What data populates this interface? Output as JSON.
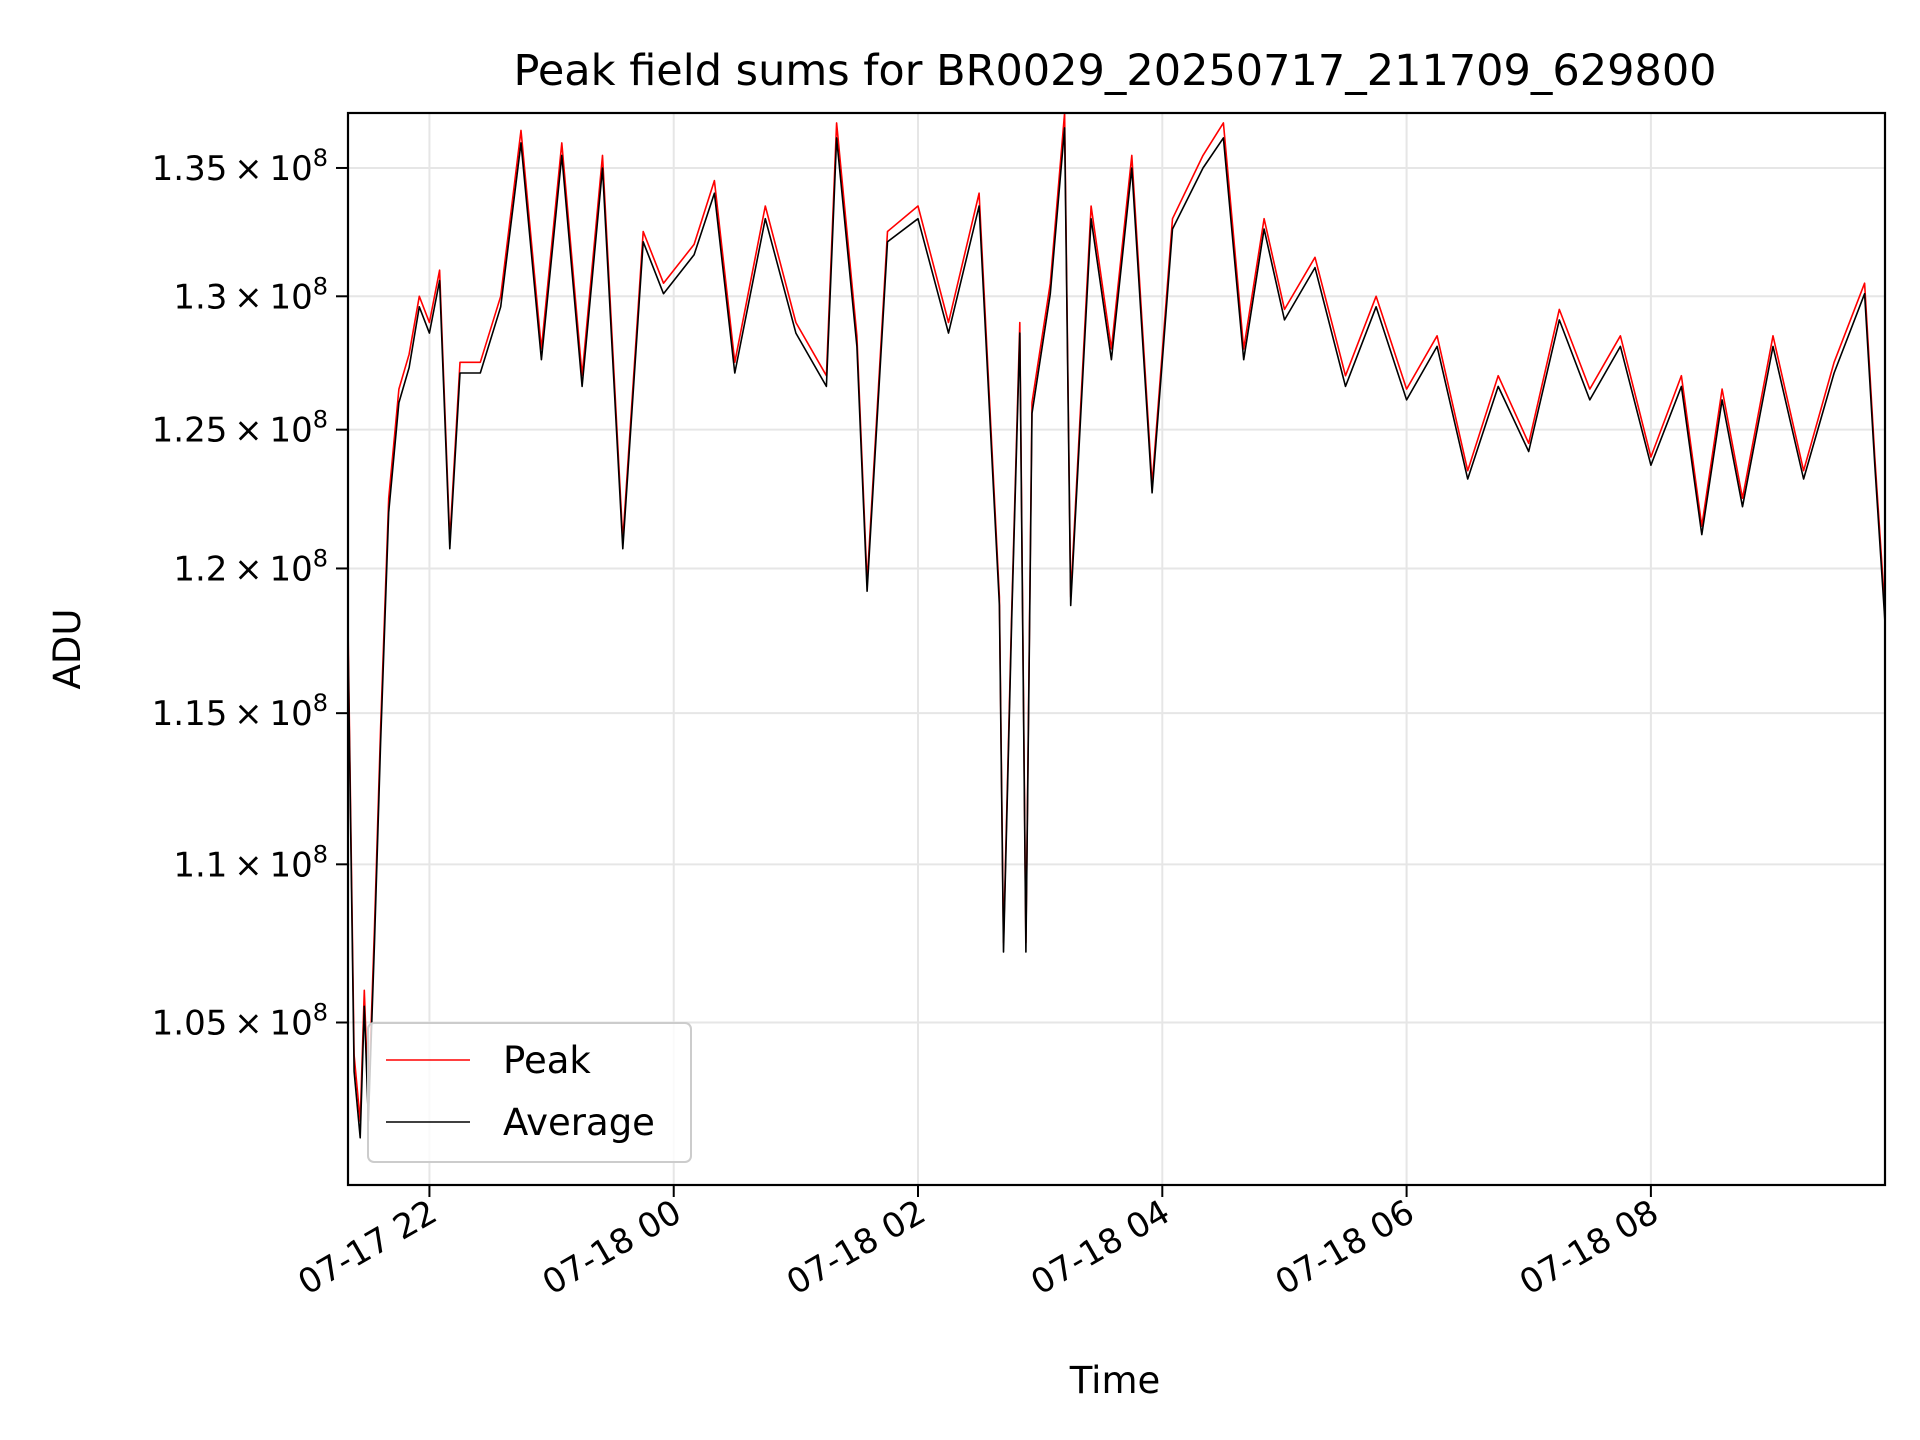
{
  "chart_data": {
    "type": "line",
    "title": "Peak field sums for BR0029_20250717_211709_629800",
    "xlabel": "Time",
    "ylabel": "ADU",
    "x_start": "2025-07-17 21:20",
    "x_end": "2025-07-18 09:55",
    "xlim": [
      "2025-07-17 21:20",
      "2025-07-18 09:55"
    ],
    "ylim": [
      100100000,
      137200000
    ],
    "y_scale": "log",
    "grid": true,
    "legend_position": "lower-left",
    "x_ticks": [
      {
        "value": "2025-07-17 22:00",
        "label": "07-17 22"
      },
      {
        "value": "2025-07-18 00:00",
        "label": "07-18 00"
      },
      {
        "value": "2025-07-18 02:00",
        "label": "07-18 02"
      },
      {
        "value": "2025-07-18 04:00",
        "label": "07-18 04"
      },
      {
        "value": "2025-07-18 06:00",
        "label": "07-18 06"
      },
      {
        "value": "2025-07-18 08:00",
        "label": "07-18 08"
      }
    ],
    "y_ticks": [
      {
        "value": 105000000,
        "mantissa": "1.05",
        "base": "10",
        "exp": "8"
      },
      {
        "value": 110000000,
        "mantissa": "1.1",
        "base": "10",
        "exp": "8"
      },
      {
        "value": 115000000,
        "mantissa": "1.15",
        "base": "10",
        "exp": "8"
      },
      {
        "value": 120000000,
        "mantissa": "1.2",
        "base": "10",
        "exp": "8"
      },
      {
        "value": 125000000,
        "mantissa": "1.25",
        "base": "10",
        "exp": "8"
      },
      {
        "value": 130000000,
        "mantissa": "1.3",
        "base": "10",
        "exp": "8"
      },
      {
        "value": 135000000,
        "mantissa": "1.35",
        "base": "10",
        "exp": "8"
      }
    ],
    "series": [
      {
        "name": "Peak",
        "color": "#ff0000",
        "points": [
          [
            "2025-07-17 21:20",
            118000000
          ],
          [
            "2025-07-17 21:23",
            104000000
          ],
          [
            "2025-07-17 21:26",
            102000000
          ],
          [
            "2025-07-17 21:28",
            106000000
          ],
          [
            "2025-07-17 21:30",
            102500000
          ],
          [
            "2025-07-17 21:33",
            108000000
          ],
          [
            "2025-07-17 21:36",
            114500000
          ],
          [
            "2025-07-17 21:40",
            122500000
          ],
          [
            "2025-07-17 21:45",
            126500000
          ],
          [
            "2025-07-17 21:50",
            127800000
          ],
          [
            "2025-07-17 21:55",
            130000000
          ],
          [
            "2025-07-17 22:00",
            129000000
          ],
          [
            "2025-07-17 22:05",
            131000000
          ],
          [
            "2025-07-17 22:10",
            121000000
          ],
          [
            "2025-07-17 22:15",
            127500000
          ],
          [
            "2025-07-17 22:25",
            127500000
          ],
          [
            "2025-07-17 22:35",
            130000000
          ],
          [
            "2025-07-17 22:45",
            136500000
          ],
          [
            "2025-07-17 22:55",
            128000000
          ],
          [
            "2025-07-17 23:05",
            136000000
          ],
          [
            "2025-07-17 23:15",
            127000000
          ],
          [
            "2025-07-17 23:25",
            135500000
          ],
          [
            "2025-07-17 23:35",
            121000000
          ],
          [
            "2025-07-17 23:45",
            132500000
          ],
          [
            "2025-07-17 23:55",
            130500000
          ],
          [
            "2025-07-18 00:10",
            132000000
          ],
          [
            "2025-07-18 00:20",
            134500000
          ],
          [
            "2025-07-18 00:30",
            127500000
          ],
          [
            "2025-07-18 00:45",
            133500000
          ],
          [
            "2025-07-18 01:00",
            129000000
          ],
          [
            "2025-07-18 01:15",
            127000000
          ],
          [
            "2025-07-18 01:20",
            136800000
          ],
          [
            "2025-07-18 01:30",
            128500000
          ],
          [
            "2025-07-18 01:35",
            119500000
          ],
          [
            "2025-07-18 01:45",
            132500000
          ],
          [
            "2025-07-18 02:00",
            133500000
          ],
          [
            "2025-07-18 02:15",
            129000000
          ],
          [
            "2025-07-18 02:30",
            134000000
          ],
          [
            "2025-07-18 02:40",
            119000000
          ],
          [
            "2025-07-18 02:42",
            107500000
          ],
          [
            "2025-07-18 02:46",
            118500000
          ],
          [
            "2025-07-18 02:50",
            129000000
          ],
          [
            "2025-07-18 02:53",
            107500000
          ],
          [
            "2025-07-18 02:56",
            126000000
          ],
          [
            "2025-07-18 03:05",
            130500000
          ],
          [
            "2025-07-18 03:12",
            137200000
          ],
          [
            "2025-07-18 03:15",
            119000000
          ],
          [
            "2025-07-18 03:25",
            133500000
          ],
          [
            "2025-07-18 03:35",
            128000000
          ],
          [
            "2025-07-18 03:45",
            135500000
          ],
          [
            "2025-07-18 03:55",
            123000000
          ],
          [
            "2025-07-18 04:05",
            133000000
          ],
          [
            "2025-07-18 04:20",
            135500000
          ],
          [
            "2025-07-18 04:30",
            136800000
          ],
          [
            "2025-07-18 04:40",
            128000000
          ],
          [
            "2025-07-18 04:50",
            133000000
          ],
          [
            "2025-07-18 05:00",
            129500000
          ],
          [
            "2025-07-18 05:15",
            131500000
          ],
          [
            "2025-07-18 05:30",
            127000000
          ],
          [
            "2025-07-18 05:45",
            130000000
          ],
          [
            "2025-07-18 06:00",
            126500000
          ],
          [
            "2025-07-18 06:15",
            128500000
          ],
          [
            "2025-07-18 06:30",
            123500000
          ],
          [
            "2025-07-18 06:45",
            127000000
          ],
          [
            "2025-07-18 07:00",
            124500000
          ],
          [
            "2025-07-18 07:15",
            129500000
          ],
          [
            "2025-07-18 07:30",
            126500000
          ],
          [
            "2025-07-18 07:45",
            128500000
          ],
          [
            "2025-07-18 08:00",
            124000000
          ],
          [
            "2025-07-18 08:15",
            127000000
          ],
          [
            "2025-07-18 08:25",
            121500000
          ],
          [
            "2025-07-18 08:35",
            126500000
          ],
          [
            "2025-07-18 08:45",
            122500000
          ],
          [
            "2025-07-18 09:00",
            128500000
          ],
          [
            "2025-07-18 09:15",
            123500000
          ],
          [
            "2025-07-18 09:30",
            127500000
          ],
          [
            "2025-07-18 09:45",
            130500000
          ],
          [
            "2025-07-18 09:50",
            124000000
          ],
          [
            "2025-07-18 09:55",
            118500000
          ]
        ]
      },
      {
        "name": "Average",
        "color": "#000000",
        "points": [
          [
            "2025-07-17 21:20",
            117500000
          ],
          [
            "2025-07-17 21:23",
            103500000
          ],
          [
            "2025-07-17 21:26",
            101500000
          ],
          [
            "2025-07-17 21:28",
            105500000
          ],
          [
            "2025-07-17 21:30",
            102000000
          ],
          [
            "2025-07-17 21:33",
            107500000
          ],
          [
            "2025-07-17 21:36",
            114000000
          ],
          [
            "2025-07-17 21:40",
            122000000
          ],
          [
            "2025-07-17 21:45",
            126000000
          ],
          [
            "2025-07-17 21:50",
            127300000
          ],
          [
            "2025-07-17 21:55",
            129600000
          ],
          [
            "2025-07-17 22:00",
            128600000
          ],
          [
            "2025-07-17 22:05",
            130600000
          ],
          [
            "2025-07-17 22:10",
            120700000
          ],
          [
            "2025-07-17 22:15",
            127100000
          ],
          [
            "2025-07-17 22:25",
            127100000
          ],
          [
            "2025-07-17 22:35",
            129600000
          ],
          [
            "2025-07-17 22:45",
            136000000
          ],
          [
            "2025-07-17 22:55",
            127600000
          ],
          [
            "2025-07-17 23:05",
            135500000
          ],
          [
            "2025-07-17 23:15",
            126600000
          ],
          [
            "2025-07-17 23:25",
            135000000
          ],
          [
            "2025-07-17 23:35",
            120700000
          ],
          [
            "2025-07-17 23:45",
            132100000
          ],
          [
            "2025-07-17 23:55",
            130100000
          ],
          [
            "2025-07-18 00:10",
            131600000
          ],
          [
            "2025-07-18 00:20",
            134000000
          ],
          [
            "2025-07-18 00:30",
            127100000
          ],
          [
            "2025-07-18 00:45",
            133000000
          ],
          [
            "2025-07-18 01:00",
            128600000
          ],
          [
            "2025-07-18 01:15",
            126600000
          ],
          [
            "2025-07-18 01:20",
            136200000
          ],
          [
            "2025-07-18 01:30",
            128100000
          ],
          [
            "2025-07-18 01:35",
            119200000
          ],
          [
            "2025-07-18 01:45",
            132100000
          ],
          [
            "2025-07-18 02:00",
            133000000
          ],
          [
            "2025-07-18 02:15",
            128600000
          ],
          [
            "2025-07-18 02:30",
            133500000
          ],
          [
            "2025-07-18 02:40",
            118700000
          ],
          [
            "2025-07-18 02:42",
            107200000
          ],
          [
            "2025-07-18 02:46",
            118200000
          ],
          [
            "2025-07-18 02:50",
            128600000
          ],
          [
            "2025-07-18 02:53",
            107200000
          ],
          [
            "2025-07-18 02:56",
            125600000
          ],
          [
            "2025-07-18 03:05",
            130100000
          ],
          [
            "2025-07-18 03:12",
            136600000
          ],
          [
            "2025-07-18 03:15",
            118700000
          ],
          [
            "2025-07-18 03:25",
            133000000
          ],
          [
            "2025-07-18 03:35",
            127600000
          ],
          [
            "2025-07-18 03:45",
            135000000
          ],
          [
            "2025-07-18 03:55",
            122700000
          ],
          [
            "2025-07-18 04:05",
            132600000
          ],
          [
            "2025-07-18 04:20",
            135000000
          ],
          [
            "2025-07-18 04:30",
            136200000
          ],
          [
            "2025-07-18 04:40",
            127600000
          ],
          [
            "2025-07-18 04:50",
            132600000
          ],
          [
            "2025-07-18 05:00",
            129100000
          ],
          [
            "2025-07-18 05:15",
            131100000
          ],
          [
            "2025-07-18 05:30",
            126600000
          ],
          [
            "2025-07-18 05:45",
            129600000
          ],
          [
            "2025-07-18 06:00",
            126100000
          ],
          [
            "2025-07-18 06:15",
            128100000
          ],
          [
            "2025-07-18 06:30",
            123200000
          ],
          [
            "2025-07-18 06:45",
            126600000
          ],
          [
            "2025-07-18 07:00",
            124200000
          ],
          [
            "2025-07-18 07:15",
            129100000
          ],
          [
            "2025-07-18 07:30",
            126100000
          ],
          [
            "2025-07-18 07:45",
            128100000
          ],
          [
            "2025-07-18 08:00",
            123700000
          ],
          [
            "2025-07-18 08:15",
            126600000
          ],
          [
            "2025-07-18 08:25",
            121200000
          ],
          [
            "2025-07-18 08:35",
            126100000
          ],
          [
            "2025-07-18 08:45",
            122200000
          ],
          [
            "2025-07-18 09:00",
            128100000
          ],
          [
            "2025-07-18 09:15",
            123200000
          ],
          [
            "2025-07-18 09:30",
            127100000
          ],
          [
            "2025-07-18 09:45",
            130100000
          ],
          [
            "2025-07-18 09:50",
            123700000
          ],
          [
            "2025-07-18 09:55",
            118100000
          ]
        ]
      }
    ]
  }
}
